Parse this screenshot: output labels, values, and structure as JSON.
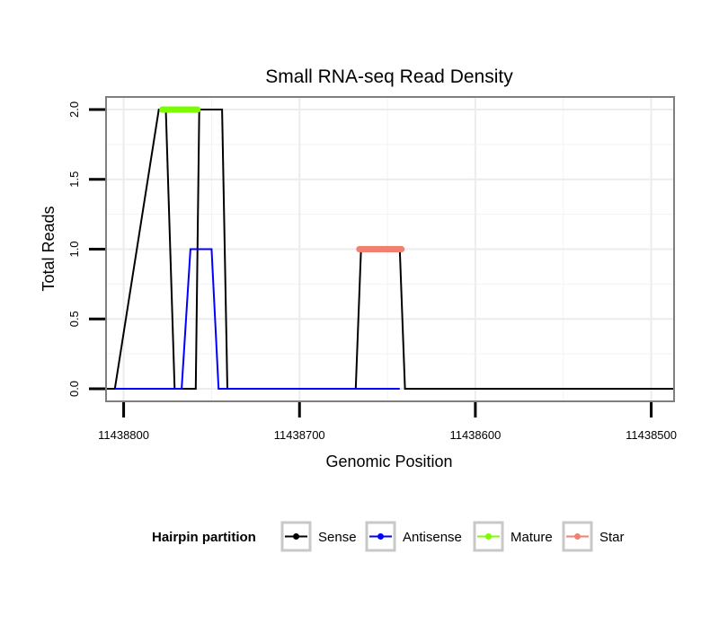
{
  "chart_data": {
    "type": "line",
    "title": "Small RNA-seq Read Density",
    "xlabel": "Genomic Position",
    "ylabel": "Total Reads",
    "x_reversed": true,
    "xlim": [
      11438810,
      11438487
    ],
    "ylim": [
      -0.09,
      2.09
    ],
    "x_ticks": [
      11438800,
      11438700,
      11438600,
      11438500
    ],
    "x_tick_labels": [
      "11438800",
      "11438700",
      "11438600",
      "11438500"
    ],
    "y_ticks": [
      0.0,
      0.5,
      1.0,
      1.5,
      2.0
    ],
    "y_tick_labels": [
      "0.0",
      "0.5",
      "1.0",
      "1.5",
      "2.0"
    ],
    "grid": true,
    "legend_title": "Hairpin partition",
    "legend_position": "bottom",
    "series": [
      {
        "name": "Sense",
        "color": "#000000",
        "width": 2,
        "x": [
          11438810,
          11438805,
          11438780,
          11438776,
          11438771,
          11438767,
          11438759,
          11438757,
          11438744,
          11438741,
          11438668,
          11438665,
          11438643,
          11438640,
          11438487
        ],
        "y": [
          0,
          0,
          2,
          2,
          0,
          0,
          0,
          2,
          2,
          0,
          0,
          1,
          1,
          0,
          0
        ]
      },
      {
        "name": "Antisense",
        "color": "#0000ff",
        "width": 2,
        "x": [
          11438805,
          11438771,
          11438767,
          11438762,
          11438750,
          11438746,
          11438741,
          11438668,
          11438665,
          11438643
        ],
        "y": [
          0,
          0,
          0,
          1,
          1,
          0,
          0,
          0,
          0,
          0
        ]
      },
      {
        "name": "Mature",
        "color": "#7cfc00",
        "width": 7,
        "x": [
          11438778,
          11438758
        ],
        "y": [
          2,
          2
        ]
      },
      {
        "name": "Star",
        "color": "#f08070",
        "width": 7,
        "x": [
          11438666,
          11438642
        ],
        "y": [
          1,
          1
        ]
      }
    ]
  }
}
